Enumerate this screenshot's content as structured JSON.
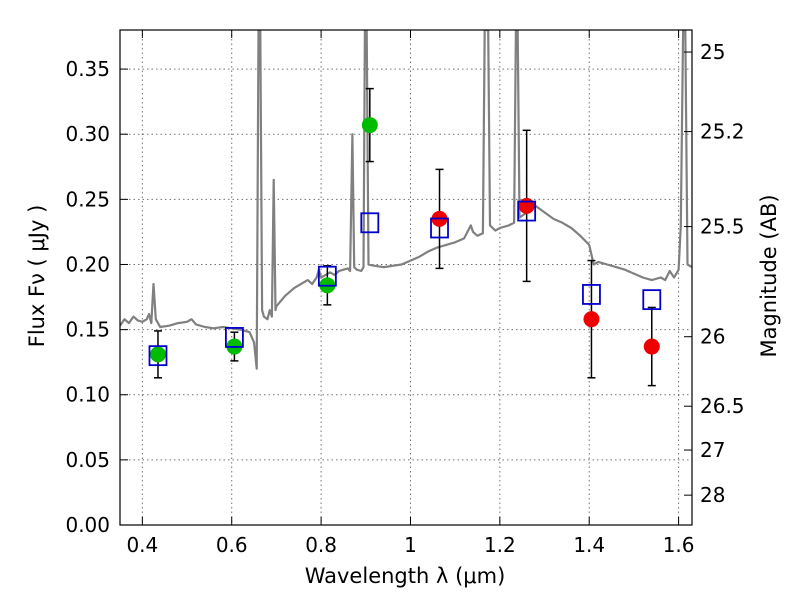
{
  "chart_data": {
    "type": "scatter",
    "xlabel": "Wavelength  λ (μm)",
    "ylabel": "Flux  Fν  ( μJy )",
    "y2label": "Magnitude (AB)",
    "xlim": [
      0.35,
      1.63
    ],
    "ylim": [
      0.0,
      0.38
    ],
    "grid": true,
    "x_ticks": [
      0.4,
      0.6,
      0.8,
      1.0,
      1.2,
      1.4,
      1.6
    ],
    "x_tick_labels": [
      "0.4",
      "0.6",
      "0.8",
      "1",
      "1.2",
      "1.4",
      "1.6"
    ],
    "y_ticks": [
      0.0,
      0.05,
      0.1,
      0.15,
      0.2,
      0.25,
      0.3,
      0.35
    ],
    "y_tick_labels": [
      "0.00",
      "0.05",
      "0.10",
      "0.15",
      "0.20",
      "0.25",
      "0.30",
      "0.35"
    ],
    "mag_ticks": [
      {
        "mag": 25,
        "label": "25"
      },
      {
        "mag": 25.2,
        "label": "25.2"
      },
      {
        "mag": 25.5,
        "label": "25.5"
      },
      {
        "mag": 26,
        "label": "26"
      },
      {
        "mag": 26.5,
        "label": "26.5"
      },
      {
        "mag": 27,
        "label": "27"
      },
      {
        "mag": 28,
        "label": "28"
      }
    ],
    "colors": {
      "spectrum": "#808080",
      "green_points": "#00bb00",
      "red_points": "#ee0000",
      "model_squares": "#0000cc",
      "errorbars": "#000000"
    },
    "series": [
      {
        "kind": "points",
        "color_key": "green_points",
        "points": [
          {
            "x": 0.435,
            "y": 0.131,
            "yerr": 0.018
          },
          {
            "x": 0.606,
            "y": 0.137,
            "yerr": 0.011
          },
          {
            "x": 0.814,
            "y": 0.184,
            "yerr": 0.015
          },
          {
            "x": 0.909,
            "y": 0.307,
            "yerr": 0.028
          }
        ]
      },
      {
        "kind": "points",
        "color_key": "red_points",
        "points": [
          {
            "x": 1.065,
            "y": 0.235,
            "yerr": 0.038
          },
          {
            "x": 1.26,
            "y": 0.245,
            "yerr": 0.058
          },
          {
            "x": 1.405,
            "y": 0.158,
            "yerr": 0.045
          },
          {
            "x": 1.54,
            "y": 0.137,
            "yerr": 0.03
          }
        ]
      },
      {
        "kind": "squares",
        "color_key": "model_squares",
        "points": [
          {
            "x": 0.435,
            "y": 0.13
          },
          {
            "x": 0.606,
            "y": 0.144
          },
          {
            "x": 0.814,
            "y": 0.191
          },
          {
            "x": 0.909,
            "y": 0.232
          },
          {
            "x": 1.065,
            "y": 0.228
          },
          {
            "x": 1.26,
            "y": 0.241
          },
          {
            "x": 1.405,
            "y": 0.177
          },
          {
            "x": 1.54,
            "y": 0.173
          }
        ]
      },
      {
        "kind": "spectrum",
        "color_key": "spectrum",
        "points": [
          [
            0.35,
            0.153
          ],
          [
            0.36,
            0.158
          ],
          [
            0.37,
            0.155
          ],
          [
            0.38,
            0.16
          ],
          [
            0.39,
            0.157
          ],
          [
            0.4,
            0.156
          ],
          [
            0.41,
            0.158
          ],
          [
            0.415,
            0.162
          ],
          [
            0.42,
            0.155
          ],
          [
            0.425,
            0.185
          ],
          [
            0.43,
            0.158
          ],
          [
            0.44,
            0.152
          ],
          [
            0.46,
            0.153
          ],
          [
            0.48,
            0.155
          ],
          [
            0.5,
            0.156
          ],
          [
            0.51,
            0.158
          ],
          [
            0.52,
            0.154
          ],
          [
            0.54,
            0.152
          ],
          [
            0.56,
            0.151
          ],
          [
            0.58,
            0.152
          ],
          [
            0.6,
            0.151
          ],
          [
            0.62,
            0.15
          ],
          [
            0.64,
            0.148
          ],
          [
            0.65,
            0.14
          ],
          [
            0.656,
            0.12
          ],
          [
            0.66,
            0.38
          ],
          [
            0.664,
            0.38
          ],
          [
            0.668,
            0.165
          ],
          [
            0.672,
            0.16
          ],
          [
            0.68,
            0.158
          ],
          [
            0.685,
            0.165
          ],
          [
            0.69,
            0.16
          ],
          [
            0.694,
            0.265
          ],
          [
            0.698,
            0.165
          ],
          [
            0.7,
            0.168
          ],
          [
            0.72,
            0.176
          ],
          [
            0.74,
            0.182
          ],
          [
            0.76,
            0.186
          ],
          [
            0.77,
            0.188
          ],
          [
            0.78,
            0.185
          ],
          [
            0.79,
            0.19
          ],
          [
            0.795,
            0.196
          ],
          [
            0.8,
            0.19
          ],
          [
            0.81,
            0.192
          ],
          [
            0.82,
            0.194
          ],
          [
            0.83,
            0.192
          ],
          [
            0.84,
            0.195
          ],
          [
            0.85,
            0.196
          ],
          [
            0.86,
            0.197
          ],
          [
            0.865,
            0.195
          ],
          [
            0.87,
            0.3
          ],
          [
            0.874,
            0.198
          ],
          [
            0.88,
            0.196
          ],
          [
            0.89,
            0.195
          ],
          [
            0.895,
            0.198
          ],
          [
            0.898,
            0.38
          ],
          [
            0.902,
            0.38
          ],
          [
            0.906,
            0.2
          ],
          [
            0.92,
            0.199
          ],
          [
            0.94,
            0.198
          ],
          [
            0.96,
            0.199
          ],
          [
            0.98,
            0.2
          ],
          [
            1.0,
            0.203
          ],
          [
            1.02,
            0.206
          ],
          [
            1.04,
            0.21
          ],
          [
            1.06,
            0.213
          ],
          [
            1.08,
            0.215
          ],
          [
            1.1,
            0.217
          ],
          [
            1.12,
            0.22
          ],
          [
            1.135,
            0.23
          ],
          [
            1.14,
            0.225
          ],
          [
            1.15,
            0.222
          ],
          [
            1.162,
            0.224
          ],
          [
            1.166,
            0.38
          ],
          [
            1.17,
            0.38
          ],
          [
            1.174,
            0.38
          ],
          [
            1.178,
            0.23
          ],
          [
            1.19,
            0.226
          ],
          [
            1.2,
            0.228
          ],
          [
            1.22,
            0.23
          ],
          [
            1.232,
            0.232
          ],
          [
            1.236,
            0.38
          ],
          [
            1.24,
            0.38
          ],
          [
            1.244,
            0.236
          ],
          [
            1.26,
            0.24
          ],
          [
            1.28,
            0.245
          ],
          [
            1.3,
            0.24
          ],
          [
            1.32,
            0.235
          ],
          [
            1.34,
            0.232
          ],
          [
            1.36,
            0.228
          ],
          [
            1.38,
            0.222
          ],
          [
            1.4,
            0.215
          ],
          [
            1.41,
            0.2
          ],
          [
            1.42,
            0.202
          ],
          [
            1.44,
            0.2
          ],
          [
            1.46,
            0.198
          ],
          [
            1.48,
            0.196
          ],
          [
            1.5,
            0.193
          ],
          [
            1.52,
            0.19
          ],
          [
            1.54,
            0.188
          ],
          [
            1.56,
            0.19
          ],
          [
            1.57,
            0.188
          ],
          [
            1.58,
            0.195
          ],
          [
            1.59,
            0.19
          ],
          [
            1.6,
            0.196
          ],
          [
            1.605,
            0.23
          ],
          [
            1.61,
            0.38
          ],
          [
            1.615,
            0.38
          ],
          [
            1.62,
            0.2
          ],
          [
            1.63,
            0.198
          ]
        ]
      }
    ]
  }
}
